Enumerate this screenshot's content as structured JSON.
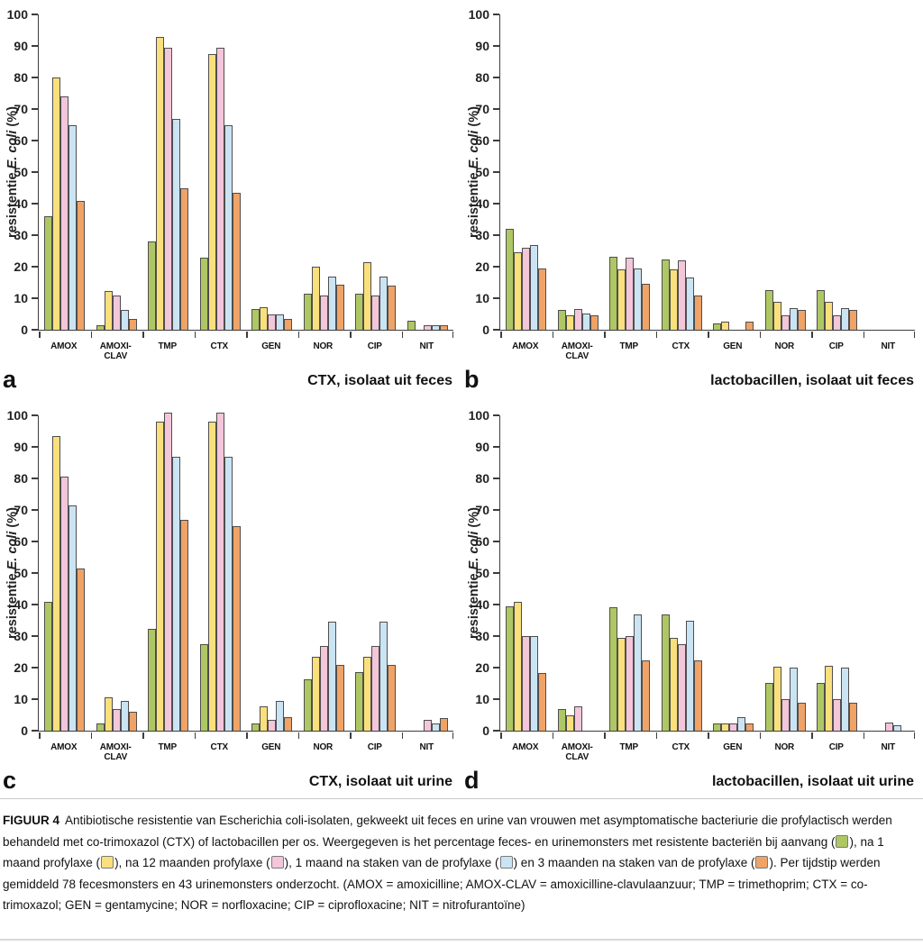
{
  "series_colors": {
    "green": "#aec764",
    "yellow": "#f9e07c",
    "pink": "#f3c6da",
    "blue": "#cbe4f3",
    "orange": "#efa366"
  },
  "axis": {
    "y_label_prefix": "resistentie ",
    "y_label_italic": "E. coli",
    "y_label_suffix": " (%)",
    "y_ticks": [
      0,
      10,
      20,
      30,
      40,
      50,
      60,
      70,
      80,
      90,
      100
    ],
    "ylim": [
      0,
      100
    ],
    "categories": [
      "AMOX",
      "AMOXI-CLAV",
      "TMP",
      "CTX",
      "GEN",
      "NOR",
      "CIP",
      "NIT"
    ]
  },
  "chart_data": [
    {
      "type": "bar",
      "panel": "a",
      "title": "CTX, isolaat uit feces",
      "ylabel": "resistentie E. coli (%)",
      "ylim": [
        0,
        100
      ],
      "categories": [
        "AMOX",
        "AMOXI-CLAV",
        "TMP",
        "CTX",
        "GEN",
        "NOR",
        "CIP",
        "NIT"
      ],
      "series": [
        {
          "name": "bij aanvang",
          "color": "green",
          "values": [
            36,
            1.5,
            28,
            23,
            6.7,
            11.5,
            11.5,
            3
          ]
        },
        {
          "name": "na 1 maand profylaxe",
          "color": "yellow",
          "values": [
            80,
            12.3,
            93,
            87.5,
            7.2,
            20,
            21.3,
            0
          ]
        },
        {
          "name": "na 12 maanden profylaxe",
          "color": "pink",
          "values": [
            74,
            11,
            89.5,
            89.5,
            4.8,
            11,
            11,
            1.4
          ]
        },
        {
          "name": "1 maand na staken van de profylaxe",
          "color": "blue",
          "values": [
            65,
            6.2,
            67,
            65,
            4.8,
            17,
            17,
            1.4
          ]
        },
        {
          "name": "3 maanden na staken van de profylaxe",
          "color": "orange",
          "values": [
            41,
            3.4,
            45,
            43.5,
            3.5,
            14.3,
            14,
            1.4
          ]
        }
      ]
    },
    {
      "type": "bar",
      "panel": "b",
      "title": "lactobacillen, isolaat uit feces",
      "ylabel": "resistentie E. coli (%)",
      "ylim": [
        0,
        100
      ],
      "categories": [
        "AMOX",
        "AMOXI-CLAV",
        "TMP",
        "CTX",
        "GEN",
        "NOR",
        "CIP",
        "NIT"
      ],
      "series": [
        {
          "name": "bij aanvang",
          "color": "green",
          "values": [
            32,
            6.2,
            23.2,
            22.2,
            2,
            12.5,
            12.5,
            0
          ]
        },
        {
          "name": "na 1 maand profylaxe",
          "color": "yellow",
          "values": [
            24.5,
            4.7,
            19.2,
            19.2,
            2.5,
            9,
            9,
            0
          ]
        },
        {
          "name": "na 12 maanden profylaxe",
          "color": "pink",
          "values": [
            26,
            6.5,
            23,
            22,
            0,
            4.5,
            4.5,
            0
          ]
        },
        {
          "name": "1 maand na staken van de profylaxe",
          "color": "blue",
          "values": [
            27,
            5.2,
            19.3,
            16.5,
            0,
            6.8,
            6.8,
            0
          ]
        },
        {
          "name": "3 maanden na staken van de profylaxe",
          "color": "orange",
          "values": [
            19.5,
            4.5,
            14.7,
            11,
            2.5,
            6.4,
            6.3,
            0
          ]
        }
      ]
    },
    {
      "type": "bar",
      "panel": "c",
      "title": "CTX, isolaat uit urine",
      "ylabel": "resistentie E. coli (%)",
      "ylim": [
        0,
        100
      ],
      "categories": [
        "AMOX",
        "AMOXI-CLAV",
        "TMP",
        "CTX",
        "GEN",
        "NOR",
        "CIP",
        "NIT"
      ],
      "series": [
        {
          "name": "bij aanvang",
          "color": "green",
          "values": [
            41,
            2.4,
            32.2,
            27.5,
            2.4,
            16.3,
            18.7,
            0
          ]
        },
        {
          "name": "na 1 maand profylaxe",
          "color": "yellow",
          "values": [
            93.5,
            10.7,
            98,
            98,
            7.8,
            23.3,
            23.3,
            0
          ]
        },
        {
          "name": "na 12 maanden profylaxe",
          "color": "pink",
          "values": [
            80.5,
            6.8,
            101,
            101,
            3.5,
            27,
            27,
            3.5
          ]
        },
        {
          "name": "1 maand na staken van de profylaxe",
          "color": "blue",
          "values": [
            71.3,
            9.3,
            87,
            87,
            9.3,
            34.5,
            34.5,
            2.4
          ]
        },
        {
          "name": "3 maanden na staken van de profylaxe",
          "color": "orange",
          "values": [
            51.3,
            6,
            67,
            65,
            4.2,
            21,
            21,
            4
          ]
        }
      ]
    },
    {
      "type": "bar",
      "panel": "d",
      "title": "lactobacillen, isolaat uit urine",
      "ylabel": "resistentie E. coli (%)",
      "ylim": [
        0,
        100
      ],
      "categories": [
        "AMOX",
        "AMOXI-CLAV",
        "TMP",
        "CTX",
        "GEN",
        "NOR",
        "CIP",
        "NIT"
      ],
      "series": [
        {
          "name": "bij aanvang",
          "color": "green",
          "values": [
            39.3,
            6.8,
            39.2,
            36.8,
            2.4,
            15.2,
            15.2,
            0
          ]
        },
        {
          "name": "na 1 maand profylaxe",
          "color": "yellow",
          "values": [
            41,
            4.8,
            29.5,
            29.5,
            2.4,
            20.4,
            20.5,
            0
          ]
        },
        {
          "name": "na 12 maanden profylaxe",
          "color": "pink",
          "values": [
            30,
            7.7,
            30,
            27.3,
            2.4,
            10,
            10,
            2.5
          ]
        },
        {
          "name": "1 maand na staken van de profylaxe",
          "color": "blue",
          "values": [
            30,
            0,
            36.8,
            34.8,
            4.2,
            20,
            20,
            1.8
          ]
        },
        {
          "name": "3 maanden na staken van de profylaxe",
          "color": "orange",
          "values": [
            18.2,
            0,
            22.3,
            22.3,
            2.4,
            9,
            9,
            0
          ]
        }
      ]
    }
  ],
  "caption": {
    "label": "FIGUUR 4",
    "segments": [
      {
        "text": "Antibiotische resistentie van Escherichia coli-isolaten, gekweekt uit feces en urine van vrouwen met asymptomatische bacteriurie die profylactisch werden behandeld met co-trimoxazol (CTX) of lactobacillen per os. Weergegeven is het percentage feces- en urinemonsters met resistente bacteriën bij aanvang ("
      },
      {
        "swatch": "green"
      },
      {
        "text": "), na 1 maand profylaxe ("
      },
      {
        "swatch": "yellow"
      },
      {
        "text": "), na 12 maanden profylaxe ("
      },
      {
        "swatch": "pink"
      },
      {
        "text": "), 1 maand na staken van de profylaxe ("
      },
      {
        "swatch": "blue"
      },
      {
        "text": ") en 3 maanden na staken van de profylaxe ("
      },
      {
        "swatch": "orange"
      },
      {
        "text": "). Per tijdstip werden gemiddeld 78 fecesmonsters en 43 urinemonsters onderzocht. (AMOX = amoxicilline; AMOX-CLAV = amoxicilline-clavulaanzuur; TMP = trimethoprim; CTX = co-trimoxazol; GEN = gentamycine; NOR = norfloxacine; CIP = ciprofloxacine; NIT = nitrofurantoïne)"
      }
    ]
  }
}
